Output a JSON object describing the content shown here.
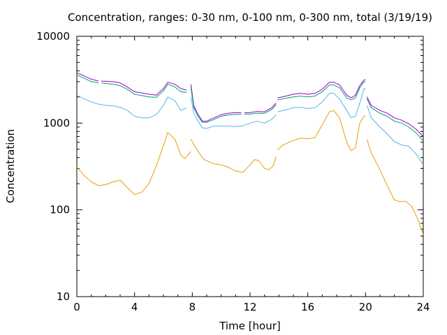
{
  "chart_data": {
    "type": "line",
    "title": "Concentration, ranges: 0-30 nm, 0-100 nm, 0-300 nm, total (3/19/19)",
    "xlabel": "Time [hour]",
    "ylabel": "Concentration",
    "xlim": [
      0,
      24
    ],
    "ylim": [
      10,
      10000
    ],
    "yscale": "log",
    "grid": false,
    "legend": "none",
    "x_ticks": [
      0,
      4,
      8,
      12,
      16,
      20,
      24
    ],
    "x_tick_labels": [
      "0",
      "4",
      "8",
      "12",
      "16",
      "20",
      "24"
    ],
    "y_ticks": [
      10,
      100,
      1000,
      10000
    ],
    "y_tick_labels": [
      "10",
      "100",
      "1000",
      "10000"
    ],
    "series": [
      {
        "color": "#9400d3",
        "segments": [
          [
            [
              0,
              3800
            ],
            [
              0.5,
              3500
            ],
            [
              1,
              3200
            ],
            [
              1.5,
              3050
            ]
          ],
          [
            [
              1.7,
              3050
            ],
            [
              2.5,
              3000
            ],
            [
              3,
              2900
            ],
            [
              3.5,
              2600
            ],
            [
              4,
              2300
            ],
            [
              5,
              2150
            ],
            [
              5.5,
              2100
            ],
            [
              6,
              2500
            ],
            [
              6.3,
              2950
            ],
            [
              6.8,
              2800
            ],
            [
              7.2,
              2500
            ],
            [
              7.6,
              2400
            ]
          ],
          [
            [
              7.9,
              2800
            ],
            [
              8.1,
              1600
            ],
            [
              8.4,
              1250
            ],
            [
              8.7,
              1050
            ],
            [
              9,
              1050
            ],
            [
              9.5,
              1150
            ],
            [
              10,
              1250
            ],
            [
              10.5,
              1300
            ],
            [
              11,
              1320
            ],
            [
              11.4,
              1310
            ]
          ],
          [
            [
              11.6,
              1310
            ],
            [
              12,
              1320
            ],
            [
              12.5,
              1360
            ],
            [
              13,
              1350
            ],
            [
              13.5,
              1500
            ],
            [
              13.8,
              1700
            ]
          ],
          [
            [
              13.9,
              1950
            ],
            [
              14.5,
              2050
            ],
            [
              15,
              2150
            ],
            [
              15.5,
              2200
            ],
            [
              16,
              2150
            ],
            [
              16.5,
              2200
            ],
            [
              17,
              2450
            ],
            [
              17.5,
              2950
            ],
            [
              17.8,
              2950
            ],
            [
              18.2,
              2750
            ],
            [
              18.7,
              2100
            ],
            [
              19,
              1950
            ],
            [
              19.3,
              2100
            ],
            [
              19.6,
              2700
            ],
            [
              19.9,
              3150
            ],
            [
              20,
              3150
            ]
          ],
          [
            [
              20.1,
              2000
            ],
            [
              20.4,
              1600
            ],
            [
              21,
              1400
            ],
            [
              21.5,
              1300
            ],
            [
              22,
              1150
            ],
            [
              22.5,
              1080
            ],
            [
              23,
              980
            ],
            [
              23.5,
              850
            ],
            [
              24,
              700
            ]
          ]
        ]
      },
      {
        "color": "#009e73",
        "segments": [
          [
            [
              0,
              3600
            ],
            [
              0.5,
              3300
            ],
            [
              1,
              3000
            ],
            [
              1.5,
              2900
            ]
          ],
          [
            [
              1.7,
              2900
            ],
            [
              2.5,
              2800
            ],
            [
              3,
              2700
            ],
            [
              3.5,
              2450
            ],
            [
              4,
              2150
            ],
            [
              5,
              2000
            ],
            [
              5.5,
              1980
            ],
            [
              6,
              2350
            ],
            [
              6.3,
              2800
            ],
            [
              6.8,
              2600
            ],
            [
              7.2,
              2300
            ],
            [
              7.6,
              2250
            ]
          ],
          [
            [
              7.9,
              2600
            ],
            [
              8.1,
              1500
            ],
            [
              8.4,
              1200
            ],
            [
              8.7,
              1020
            ],
            [
              9,
              1020
            ],
            [
              9.5,
              1100
            ],
            [
              10,
              1200
            ],
            [
              10.5,
              1240
            ],
            [
              11,
              1260
            ],
            [
              11.4,
              1260
            ]
          ],
          [
            [
              11.6,
              1260
            ],
            [
              12,
              1270
            ],
            [
              12.5,
              1300
            ],
            [
              13,
              1300
            ],
            [
              13.5,
              1430
            ],
            [
              13.8,
              1630
            ]
          ],
          [
            [
              13.9,
              1850
            ],
            [
              14.5,
              1930
            ],
            [
              15,
              2000
            ],
            [
              15.5,
              2050
            ],
            [
              16,
              2000
            ],
            [
              16.5,
              2050
            ],
            [
              17,
              2300
            ],
            [
              17.5,
              2750
            ],
            [
              17.8,
              2750
            ],
            [
              18.2,
              2550
            ],
            [
              18.7,
              1950
            ],
            [
              19,
              1850
            ],
            [
              19.3,
              1950
            ],
            [
              19.6,
              2550
            ],
            [
              19.9,
              3000
            ],
            [
              20,
              3000
            ]
          ],
          [
            [
              20.1,
              1900
            ],
            [
              20.4,
              1500
            ],
            [
              21,
              1300
            ],
            [
              21.5,
              1200
            ],
            [
              22,
              1050
            ],
            [
              22.5,
              1000
            ],
            [
              23,
              900
            ],
            [
              23.5,
              770
            ],
            [
              24,
              620
            ]
          ]
        ]
      },
      {
        "color": "#56b4e9",
        "segments": [
          [
            [
              0,
              2100
            ],
            [
              0.5,
              1900
            ],
            [
              1,
              1750
            ],
            [
              1.5,
              1650
            ],
            [
              2,
              1600
            ],
            [
              2.5,
              1580
            ],
            [
              3,
              1520
            ],
            [
              3.5,
              1400
            ],
            [
              4,
              1200
            ],
            [
              4.5,
              1150
            ],
            [
              5,
              1150
            ],
            [
              5.5,
              1250
            ],
            [
              6,
              1600
            ],
            [
              6.3,
              2000
            ],
            [
              6.8,
              1800
            ],
            [
              7.2,
              1400
            ],
            [
              7.6,
              1500
            ]
          ],
          [
            [
              7.9,
              2000
            ],
            [
              8.1,
              1300
            ],
            [
              8.4,
              1050
            ],
            [
              8.7,
              880
            ],
            [
              9,
              870
            ],
            [
              9.5,
              920
            ],
            [
              10,
              920
            ],
            [
              10.5,
              920
            ],
            [
              11,
              910
            ],
            [
              11.5,
              930
            ],
            [
              12,
              1000
            ],
            [
              12.5,
              1050
            ],
            [
              13,
              1000
            ],
            [
              13.5,
              1100
            ],
            [
              13.8,
              1250
            ]
          ],
          [
            [
              13.9,
              1350
            ],
            [
              14.5,
              1420
            ],
            [
              15,
              1500
            ],
            [
              15.5,
              1520
            ],
            [
              16,
              1470
            ],
            [
              16.5,
              1500
            ],
            [
              17,
              1750
            ],
            [
              17.5,
              2200
            ],
            [
              17.8,
              2200
            ],
            [
              18.2,
              1900
            ],
            [
              18.7,
              1400
            ],
            [
              19,
              1150
            ],
            [
              19.3,
              1200
            ],
            [
              19.6,
              1700
            ],
            [
              19.9,
              2500
            ],
            [
              20,
              2500
            ]
          ],
          [
            [
              20.1,
              1600
            ],
            [
              20.4,
              1150
            ],
            [
              21,
              900
            ],
            [
              21.5,
              750
            ],
            [
              22,
              610
            ],
            [
              22.5,
              560
            ],
            [
              23,
              540
            ],
            [
              23.5,
              440
            ],
            [
              24,
              330
            ]
          ]
        ]
      },
      {
        "color": "#e69f00",
        "segments": [
          [
            [
              0,
              310
            ],
            [
              0.5,
              250
            ],
            [
              1,
              210
            ],
            [
              1.5,
              190
            ],
            [
              2,
              195
            ],
            [
              2.5,
              210
            ],
            [
              3,
              220
            ],
            [
              3.5,
              180
            ],
            [
              4,
              150
            ],
            [
              4.5,
              160
            ],
            [
              5,
              200
            ],
            [
              5.5,
              320
            ],
            [
              6,
              550
            ],
            [
              6.3,
              780
            ],
            [
              6.8,
              650
            ],
            [
              7.2,
              430
            ],
            [
              7.5,
              390
            ],
            [
              7.9,
              470
            ]
          ],
          [
            [
              7.9,
              650
            ],
            [
              8.3,
              500
            ],
            [
              8.8,
              380
            ],
            [
              9.5,
              340
            ],
            [
              10,
              330
            ],
            [
              10.5,
              310
            ],
            [
              11,
              280
            ],
            [
              11.5,
              270
            ],
            [
              12,
              330
            ],
            [
              12.3,
              380
            ],
            [
              12.6,
              370
            ],
            [
              13,
              300
            ],
            [
              13.3,
              290
            ],
            [
              13.6,
              320
            ],
            [
              13.8,
              410
            ]
          ],
          [
            [
              13.9,
              490
            ],
            [
              14.3,
              560
            ],
            [
              15,
              630
            ],
            [
              15.5,
              670
            ],
            [
              16,
              660
            ],
            [
              16.5,
              680
            ],
            [
              17,
              950
            ],
            [
              17.5,
              1350
            ],
            [
              17.8,
              1400
            ],
            [
              18.2,
              1150
            ],
            [
              18.7,
              600
            ],
            [
              19,
              480
            ],
            [
              19.3,
              520
            ],
            [
              19.6,
              1000
            ],
            [
              19.9,
              1200
            ],
            [
              20,
              1200
            ]
          ],
          [
            [
              20.1,
              650
            ],
            [
              20.4,
              450
            ],
            [
              21,
              290
            ],
            [
              21.5,
              190
            ],
            [
              22,
              130
            ],
            [
              22.3,
              125
            ],
            [
              22.8,
              125
            ],
            [
              23.2,
              110
            ],
            [
              23.6,
              80
            ],
            [
              24,
              52
            ]
          ]
        ]
      }
    ]
  }
}
